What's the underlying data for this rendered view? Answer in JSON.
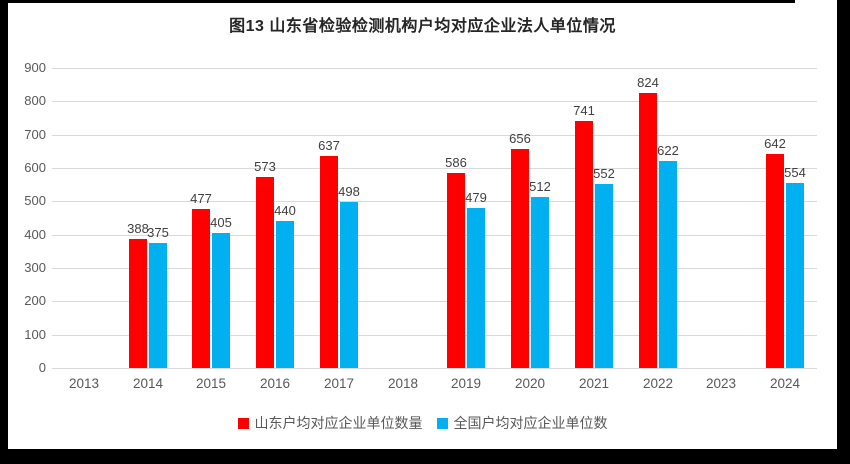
{
  "frame": {
    "border_color": "#000000",
    "background": "#FFFFFF"
  },
  "style": {
    "gridline_color": "#D9D9D9",
    "axis_text_color": "#595959",
    "data_label_color": "#404040",
    "title_color": "#262626"
  },
  "chart_data": {
    "type": "bar",
    "title": "图13 山东省检验检测机构户均对应企业法人单位情况",
    "categories": [
      "2013",
      "2014",
      "2015",
      "2016",
      "2017",
      "2018",
      "2019",
      "2020",
      "2021",
      "2022",
      "2023",
      "2024"
    ],
    "series": [
      {
        "key": "shandong",
        "name": "山东户均对应企业单位数量",
        "color": "#FF0000",
        "values": [
          null,
          388,
          477,
          573,
          637,
          null,
          586,
          656,
          741,
          824,
          null,
          642
        ]
      },
      {
        "key": "national",
        "name": "全国户均对应企业单位数",
        "color": "#00B0F0",
        "values": [
          null,
          375,
          405,
          440,
          498,
          null,
          479,
          512,
          552,
          622,
          null,
          554
        ]
      }
    ],
    "xlabel": "",
    "ylabel": "",
    "ylim": [
      0,
      900
    ],
    "yticks": [
      0,
      100,
      200,
      300,
      400,
      500,
      600,
      700,
      800,
      900
    ],
    "grid": true,
    "legend_position": "bottom",
    "data_labels": true
  }
}
